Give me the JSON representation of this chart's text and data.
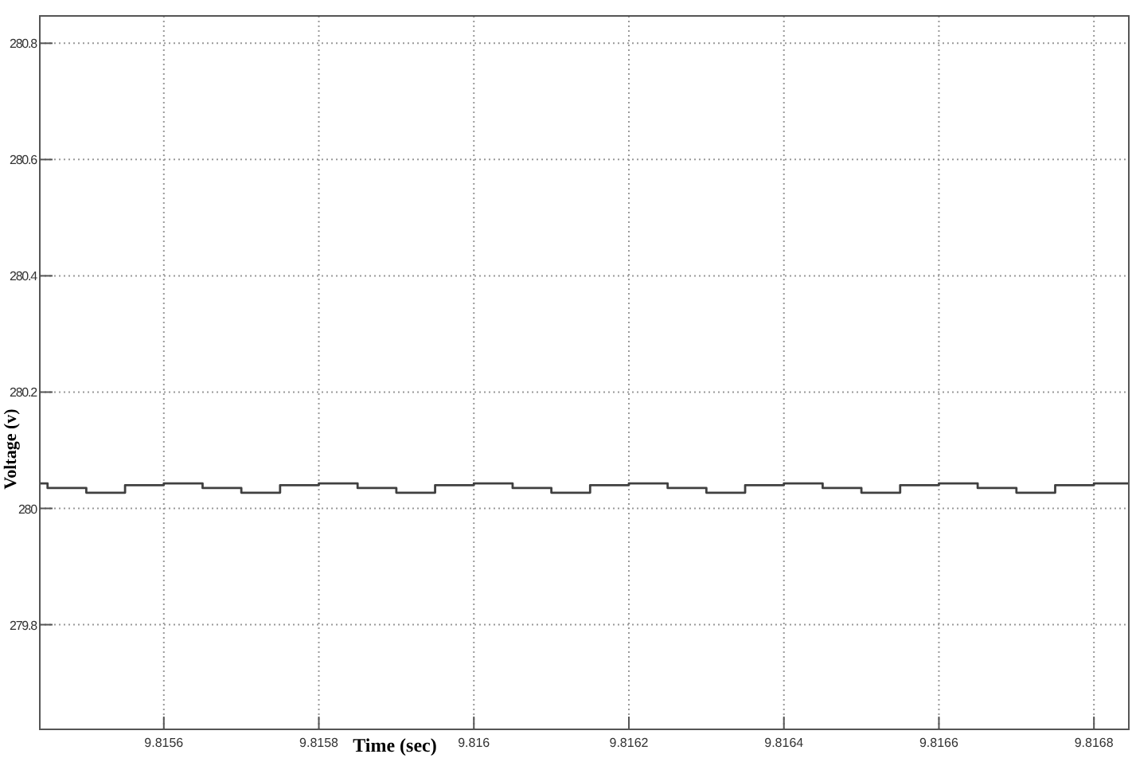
{
  "chart_data": {
    "type": "step",
    "xlabel": "Time (sec)",
    "ylabel": "Voltage (v)",
    "xlim": [
      9.81544,
      9.816845
    ],
    "ylim": [
      279.62,
      280.847
    ],
    "xticks": [
      9.8156,
      9.8158,
      9.816,
      9.8162,
      9.8164,
      9.8166,
      9.8168
    ],
    "yticks": [
      279.8,
      280,
      280.2,
      280.4,
      280.6,
      280.8
    ],
    "grid": true,
    "marker": "none",
    "line_style": "solid",
    "series": [
      {
        "color": "#404040",
        "x": [
          9.81544,
          9.81545,
          9.8155,
          9.81555,
          9.8156,
          9.81565,
          9.8157,
          9.81575,
          9.8158,
          9.81585,
          9.8159,
          9.81595,
          9.816,
          9.81605,
          9.8161,
          9.81615,
          9.8162,
          9.81625,
          9.8163,
          9.81635,
          9.8164,
          9.81645,
          9.8165,
          9.81655,
          9.8166,
          9.81665,
          9.8167,
          9.81675,
          9.8168,
          9.816845
        ],
        "values": [
          280.043,
          280.035,
          280.027,
          280.04,
          280.043,
          280.035,
          280.027,
          280.04,
          280.043,
          280.035,
          280.027,
          280.04,
          280.043,
          280.035,
          280.027,
          280.04,
          280.043,
          280.035,
          280.027,
          280.04,
          280.043,
          280.035,
          280.027,
          280.04,
          280.043,
          280.035,
          280.027,
          280.04,
          280.043,
          280.043
        ]
      }
    ]
  }
}
